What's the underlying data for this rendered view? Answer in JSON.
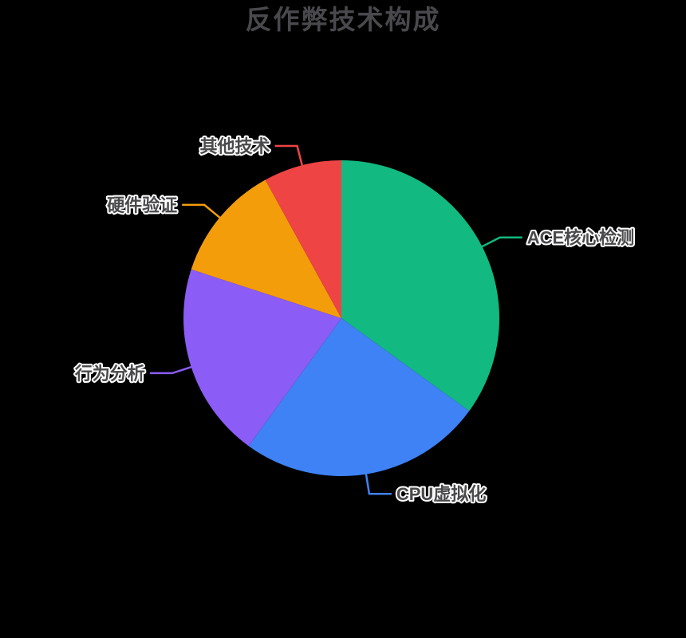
{
  "page": {
    "background_color": "#000000"
  },
  "title": {
    "text": "反作弊技术构成",
    "color": "#49494d"
  },
  "chart_data": {
    "type": "pie",
    "title": "反作弊技术构成",
    "unit": "percent",
    "start_angle_deg": 0,
    "direction": "clockwise",
    "legend_position": "none",
    "grid": false,
    "label_style": {
      "text_color": "#4a4a4d",
      "outline_color": "#ffffff"
    },
    "categories": [
      "ACE核心检测",
      "CPU虚拟化",
      "行为分析",
      "硬件验证",
      "其他技术"
    ],
    "values": [
      35,
      25,
      20,
      12,
      8
    ],
    "series": [
      {
        "name": "ACE核心检测",
        "value": 35,
        "color": "#12b981"
      },
      {
        "name": "CPU虚拟化",
        "value": 25,
        "color": "#3e82f5"
      },
      {
        "name": "行为分析",
        "value": 20,
        "color": "#8b5cf6"
      },
      {
        "name": "硬件验证",
        "value": 12,
        "color": "#f49d0b"
      },
      {
        "name": "其他技术",
        "value": 8,
        "color": "#ef4444"
      }
    ]
  }
}
